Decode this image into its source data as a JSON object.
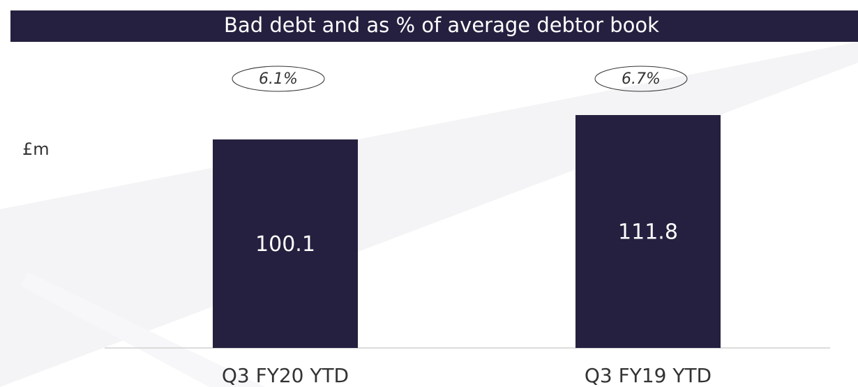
{
  "chart_data": {
    "type": "bar",
    "title": "Bad debt and as % of average debtor book",
    "y_label": "£m",
    "categories": [
      "Q3 FY20 YTD",
      "Q3 FY19 YTD"
    ],
    "values": [
      100.1,
      111.8
    ],
    "color": "#25203f",
    "ylim": [
      0,
      120
    ],
    "annotations": [
      {
        "value": 6.1,
        "label": "6.1%"
      },
      {
        "value": 6.7,
        "label": "6.7%"
      }
    ]
  }
}
